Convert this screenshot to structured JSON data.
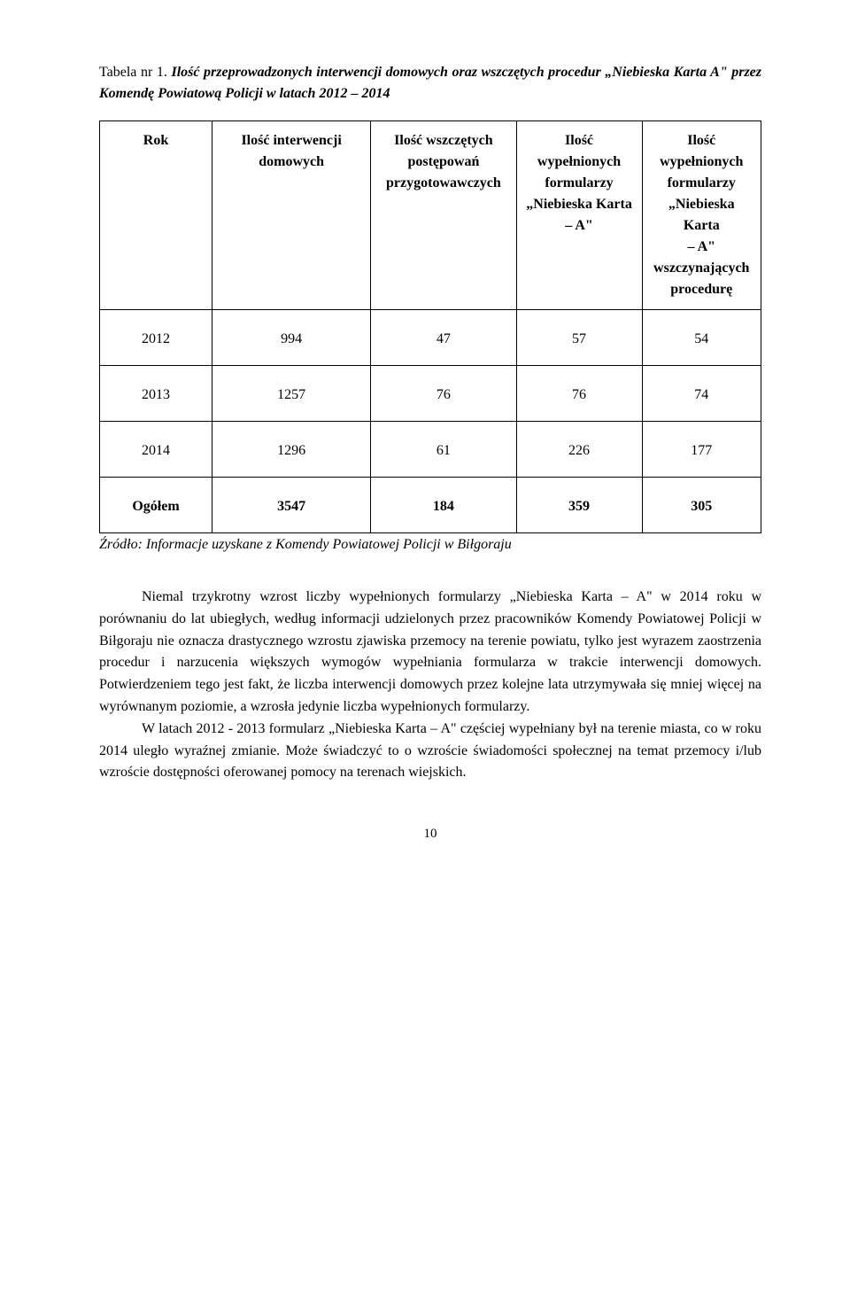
{
  "caption": {
    "label": "Tabela nr 1.",
    "title_italic": "Ilość przeprowadzonych interwencji domowych oraz wszczętych procedur „Niebieska Karta A\" przez Komendę Powiatową Policji w latach 2012 – 2014"
  },
  "table": {
    "headers": {
      "c0": [
        "Rok"
      ],
      "c1": [
        "Ilość interwencji",
        "domowych"
      ],
      "c2": [
        "Ilość wszczętych",
        "postępowań",
        "przygotowawczych"
      ],
      "c3": [
        "Ilość",
        "wypełnionych",
        "formularzy",
        "„Niebieska Karta",
        "– A\""
      ],
      "c4": [
        "Ilość",
        "wypełnionych",
        "formularzy",
        "„Niebieska Karta",
        "– A\"",
        "wszczynających",
        "procedurę"
      ]
    },
    "rows": [
      {
        "year": "2012",
        "v1": "994",
        "v2": "47",
        "v3": "57",
        "v4": "54"
      },
      {
        "year": "2013",
        "v1": "1257",
        "v2": "76",
        "v3": "76",
        "v4": "74"
      },
      {
        "year": "2014",
        "v1": "1296",
        "v2": "61",
        "v3": "226",
        "v4": "177"
      }
    ],
    "total": {
      "label": "Ogółem",
      "v1": "3547",
      "v2": "184",
      "v3": "359",
      "v4": "305"
    }
  },
  "source": "Źródło: Informacje uzyskane z Komendy Powiatowej Policji w Biłgoraju",
  "paragraphs": {
    "p1": "Niemal trzykrotny wzrost liczby wypełnionych formularzy „Niebieska Karta – A\" w 2014 roku w porównaniu do lat ubiegłych, według informacji udzielonych przez pracowników Komendy Powiatowej Policji w Biłgoraju nie oznacza drastycznego wzrostu zjawiska przemocy na terenie powiatu, tylko jest wyrazem zaostrzenia procedur i narzucenia większych wymogów wypełniania formularza w trakcie interwencji domowych. Potwierdzeniem tego jest fakt, że liczba interwencji domowych przez kolejne lata utrzymywała się mniej więcej na wyrównanym poziomie, a wzrosła jedynie liczba wypełnionych formularzy.",
    "p2": "W latach 2012 - 2013 formularz „Niebieska Karta – A\" częściej wypełniany był na terenie miasta, co w roku 2014 uległo wyraźnej zmianie. Może świadczyć to o wzroście świadomości społecznej na temat przemocy i/lub wzroście dostępności oferowanej pomocy na terenach wiejskich."
  },
  "page_number": "10"
}
